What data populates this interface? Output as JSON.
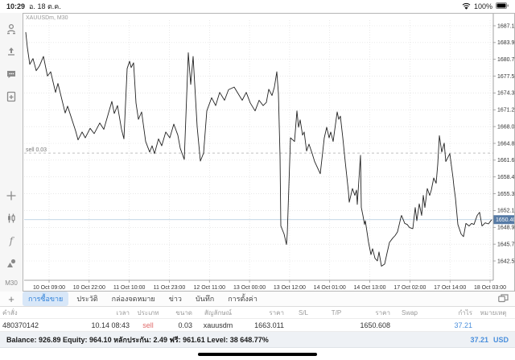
{
  "status_bar": {
    "time": "10:29",
    "date": "อ. 18 ต.ค.",
    "battery": "100%"
  },
  "sidebar": {
    "icons": [
      "account-icon",
      "trade-icon",
      "chat-icon",
      "new-order-icon",
      "crosshair-icon",
      "indicator-icon",
      "function-icon",
      "objects-icon"
    ],
    "timeframe": "M30"
  },
  "chart": {
    "symbol_label": "XAUUSDm, M30"
  },
  "chart_data": {
    "type": "line",
    "title": "XAUUSDm, M30",
    "ylabel": "price",
    "grid": true,
    "price_ticks": [
      1687.11,
      1683.93,
      1680.75,
      1677.57,
      1674.39,
      1671.21,
      1668.03,
      1664.85,
      1661.67,
      1658.49,
      1655.31,
      1652.13,
      1648.95,
      1645.77,
      1642.59
    ],
    "time_ticks": [
      "10 Oct 09:00",
      "10 Oct 22:00",
      "11 Oct 10:00",
      "11 Oct 23:00",
      "12 Oct 11:00",
      "13 Oct 00:00",
      "13 Oct 12:00",
      "14 Oct 01:00",
      "14 Oct 13:00",
      "17 Oct 02:00",
      "17 Oct 14:00",
      "18 Oct 03:00"
    ],
    "position_line": {
      "price": 1663.011,
      "label": "sell 0.03"
    },
    "current_price": {
      "value": 1650.408,
      "label": "1650.408"
    },
    "series": [
      {
        "name": "XAUUSDm bid",
        "points": [
          [
            3,
            1685.9
          ],
          [
            5,
            1683.0
          ],
          [
            8,
            1679.8
          ],
          [
            12,
            1680.9
          ],
          [
            16,
            1678.6
          ],
          [
            20,
            1679.5
          ],
          [
            25,
            1681.3
          ],
          [
            30,
            1677.6
          ],
          [
            34,
            1678.4
          ],
          [
            40,
            1674.5
          ],
          [
            43,
            1676.2
          ],
          [
            52,
            1670.6
          ],
          [
            55,
            1671.9
          ],
          [
            65,
            1667.2
          ],
          [
            68,
            1665.5
          ],
          [
            73,
            1667.0
          ],
          [
            77,
            1665.9
          ],
          [
            83,
            1667.7
          ],
          [
            88,
            1666.7
          ],
          [
            95,
            1668.7
          ],
          [
            100,
            1667.5
          ],
          [
            110,
            1672.8
          ],
          [
            113,
            1670.5
          ],
          [
            117,
            1672.0
          ],
          [
            122,
            1667.5
          ],
          [
            125,
            1665.7
          ],
          [
            129,
            1679.0
          ],
          [
            132,
            1680.4
          ],
          [
            134,
            1679.2
          ],
          [
            137,
            1680.1
          ],
          [
            140,
            1672.5
          ],
          [
            143,
            1669.4
          ],
          [
            147,
            1670.8
          ],
          [
            152,
            1665.2
          ],
          [
            157,
            1663.2
          ],
          [
            160,
            1664.4
          ],
          [
            163,
            1662.9
          ],
          [
            168,
            1665.7
          ],
          [
            172,
            1664.4
          ],
          [
            177,
            1667.0
          ],
          [
            182,
            1665.9
          ],
          [
            187,
            1668.5
          ],
          [
            192,
            1666.4
          ],
          [
            195,
            1663.9
          ],
          [
            200,
            1661.8
          ],
          [
            205,
            1682.0
          ],
          [
            208,
            1676.0
          ],
          [
            211,
            1681.3
          ],
          [
            216,
            1668.0
          ],
          [
            220,
            1661.5
          ],
          [
            224,
            1663.0
          ],
          [
            228,
            1671.0
          ],
          [
            234,
            1673.5
          ],
          [
            239,
            1672.0
          ],
          [
            244,
            1674.5
          ],
          [
            250,
            1673.0
          ],
          [
            255,
            1675.0
          ],
          [
            262,
            1675.5
          ],
          [
            268,
            1674.0
          ],
          [
            272,
            1673.0
          ],
          [
            277,
            1674.5
          ],
          [
            282,
            1672.5
          ],
          [
            288,
            1671.0
          ],
          [
            293,
            1673.0
          ],
          [
            298,
            1672.0
          ],
          [
            302,
            1672.6
          ],
          [
            305,
            1675.1
          ],
          [
            309,
            1673.9
          ],
          [
            312,
            1675.5
          ],
          [
            315,
            1678.4
          ],
          [
            317,
            1674.3
          ],
          [
            319,
            1662.4
          ],
          [
            320,
            1649.2
          ],
          [
            324,
            1647.7
          ],
          [
            327,
            1645.7
          ],
          [
            328,
            1647.7
          ],
          [
            332,
            1665.9
          ],
          [
            337,
            1665.2
          ],
          [
            340,
            1671.0
          ],
          [
            342,
            1667.9
          ],
          [
            344,
            1669.3
          ],
          [
            347,
            1666.4
          ],
          [
            349,
            1667.0
          ],
          [
            352,
            1663.4
          ],
          [
            355,
            1664.7
          ],
          [
            359,
            1662.9
          ],
          [
            362,
            1661.4
          ],
          [
            369,
            1659.1
          ],
          [
            374,
            1665.9
          ],
          [
            377,
            1667.9
          ],
          [
            380,
            1665.9
          ],
          [
            382,
            1667.0
          ],
          [
            385,
            1665.2
          ],
          [
            390,
            1670.8
          ],
          [
            392,
            1669.4
          ],
          [
            394,
            1670.0
          ],
          [
            397,
            1665.9
          ],
          [
            400,
            1661.4
          ],
          [
            404,
            1655.7
          ],
          [
            405,
            1653.7
          ],
          [
            409,
            1656.3
          ],
          [
            412,
            1655.0
          ],
          [
            414,
            1656.0
          ],
          [
            415,
            1653.3
          ],
          [
            419,
            1662.6
          ],
          [
            420,
            1652.7
          ],
          [
            422,
            1651.2
          ],
          [
            424,
            1649.5
          ],
          [
            425,
            1650.2
          ],
          [
            429,
            1646.1
          ],
          [
            432,
            1643.8
          ],
          [
            434,
            1644.9
          ],
          [
            437,
            1643.1
          ],
          [
            440,
            1642.6
          ],
          [
            442,
            1644.3
          ],
          [
            445,
            1641.6
          ],
          [
            449,
            1642.0
          ],
          [
            452,
            1644.1
          ],
          [
            455,
            1646.1
          ],
          [
            459,
            1646.9
          ],
          [
            462,
            1647.4
          ],
          [
            465,
            1648.1
          ],
          [
            469,
            1650.7
          ],
          [
            470,
            1651.2
          ],
          [
            474,
            1649.7
          ],
          [
            477,
            1649.5
          ],
          [
            480,
            1648.9
          ],
          [
            484,
            1648.7
          ],
          [
            487,
            1652.7
          ],
          [
            489,
            1650.2
          ],
          [
            492,
            1653.4
          ],
          [
            495,
            1651.2
          ],
          [
            497,
            1655.0
          ],
          [
            499,
            1652.7
          ],
          [
            502,
            1656.3
          ],
          [
            505,
            1655.0
          ],
          [
            507,
            1656.0
          ],
          [
            510,
            1658.3
          ],
          [
            513,
            1657.3
          ],
          [
            515,
            1660.9
          ],
          [
            517,
            1666.3
          ],
          [
            520,
            1663.2
          ],
          [
            523,
            1664.9
          ],
          [
            525,
            1661.4
          ],
          [
            530,
            1662.9
          ],
          [
            534,
            1658.3
          ],
          [
            535,
            1656.8
          ],
          [
            537,
            1654.5
          ],
          [
            540,
            1649.5
          ],
          [
            544,
            1647.7
          ],
          [
            547,
            1647.2
          ],
          [
            550,
            1649.7
          ],
          [
            554,
            1649.2
          ],
          [
            557,
            1649.7
          ],
          [
            560,
            1649.5
          ],
          [
            564,
            1651.2
          ],
          [
            567,
            1651.8
          ],
          [
            570,
            1649.2
          ],
          [
            574,
            1649.8
          ],
          [
            578,
            1649.6
          ],
          [
            582,
            1650.4
          ]
        ]
      }
    ]
  },
  "tabs": {
    "add_label": "+",
    "items": [
      {
        "label": "การซื้อขาย",
        "selected": true
      },
      {
        "label": "ประวัติ",
        "selected": false
      },
      {
        "label": "กล่องจดหมาย",
        "selected": false
      },
      {
        "label": "ข่าว",
        "selected": false
      },
      {
        "label": "บันทึก",
        "selected": false
      },
      {
        "label": "การตั้งค่า",
        "selected": false
      }
    ]
  },
  "table": {
    "headers": [
      "คำสั่ง",
      "เวลา",
      "ประเภท",
      "ขนาด",
      "สัญลักษณ์",
      "ราคา",
      "S/L",
      "T/P",
      "ราคา",
      "Swap",
      "กำไร",
      "หมายเหตุ"
    ],
    "rows": [
      [
        "480370142",
        "10.14 08:43",
        "sell",
        "0.03",
        "xauusdm",
        "1663.011",
        "",
        "",
        "1650.608",
        "",
        "37.21",
        ""
      ]
    ]
  },
  "summary": {
    "text": "Balance: 926.89 Equity: 964.10 หลักประกัน: 2.49 ฟรี: 961.61 Level: 38 648.77%",
    "profit": "37.21",
    "currency": "USD"
  }
}
